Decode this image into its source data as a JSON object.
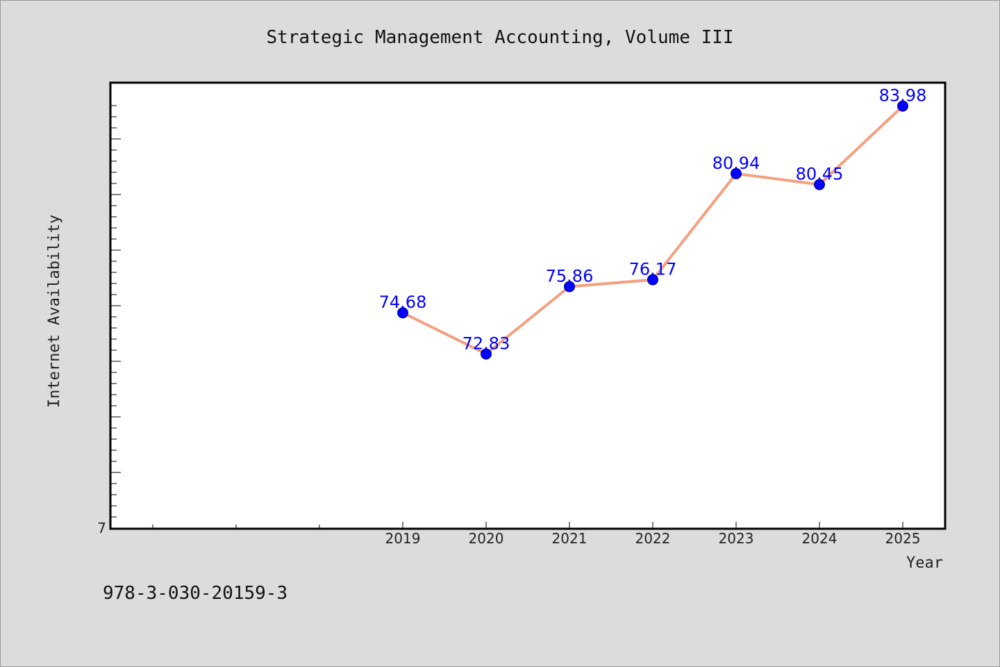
{
  "colors": {
    "background": "#dcdcdc",
    "plot_background": "#ffffff",
    "line": "#f4a07e",
    "marker": "#0000ff",
    "data_label": "#0000ff"
  },
  "footer": {
    "isbn": "978-3-030-20159-3"
  },
  "chart_data": {
    "type": "line",
    "title": "Strategic Management Accounting, Volume III",
    "xlabel": "Year",
    "ylabel": "Internet Availability",
    "x": [
      "2019",
      "2020",
      "2021",
      "2022",
      "2023",
      "2024",
      "2025"
    ],
    "series": [
      {
        "values": [
          74.68,
          72.83,
          75.86,
          76.17,
          80.94,
          80.45,
          83.98
        ]
      }
    ],
    "ylim": [
      65,
      85
    ],
    "y_tick_labels": [
      {
        "value": 65,
        "label": "7"
      }
    ],
    "grid": false,
    "legend": "none",
    "data_labels": true
  }
}
